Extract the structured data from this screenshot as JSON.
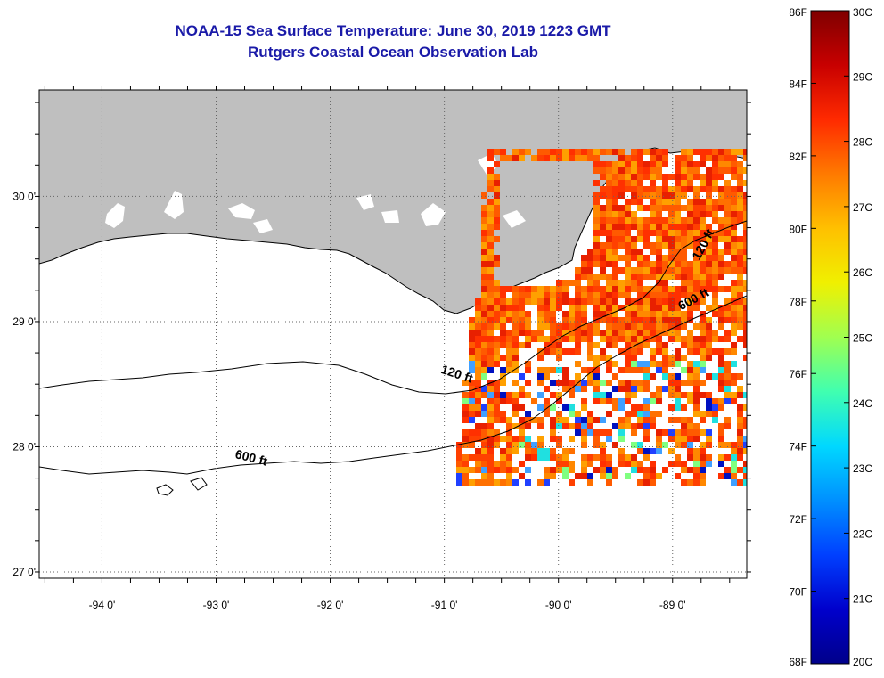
{
  "title": "NOAA-15 Sea Surface Temperature:  June 30, 2019 1223 GMT",
  "subtitle": "Rutgers Coastal Ocean Observation Lab",
  "map": {
    "lon_range": [
      -94.55,
      -88.35
    ],
    "lat_range": [
      26.95,
      30.85
    ],
    "lon_ticks": [
      {
        "value": -94,
        "label": "-94 0'"
      },
      {
        "value": -93,
        "label": "-93 0'"
      },
      {
        "value": -92,
        "label": "-92 0'"
      },
      {
        "value": -91,
        "label": "-91 0'"
      },
      {
        "value": -90,
        "label": "-90 0'"
      },
      {
        "value": -89,
        "label": "-89 0'"
      }
    ],
    "lat_ticks": [
      {
        "value": 30,
        "label": "30 0'"
      },
      {
        "value": 29,
        "label": "29 0'"
      },
      {
        "value": 28,
        "label": "28 0'"
      },
      {
        "value": 27,
        "label": "27 0'"
      }
    ],
    "contour_labels": [
      {
        "text": "120 ft",
        "lon": -90.9,
        "lat": 28.55,
        "angle": 18
      },
      {
        "text": "600 ft",
        "lon": -92.7,
        "lat": 27.88,
        "angle": 14
      },
      {
        "text": "120 ft",
        "lon": -88.7,
        "lat": 29.6,
        "angle": -62
      },
      {
        "text": "600 ft",
        "lon": -88.8,
        "lat": 29.15,
        "angle": -28
      }
    ],
    "land_color": "#bfbfbf"
  },
  "colorbar": {
    "f_labels": [
      "86F",
      "84F",
      "82F",
      "80F",
      "78F",
      "76F",
      "74F",
      "72F",
      "70F",
      "68F"
    ],
    "c_labels": [
      "30C",
      "29C",
      "28C",
      "27C",
      "26C",
      "25C",
      "24C",
      "23C",
      "22C",
      "21C",
      "20C"
    ],
    "gradient": [
      "#7f0000",
      "#c80000",
      "#ff2a00",
      "#ff7a00",
      "#ffc000",
      "#f0f000",
      "#a0ff50",
      "#40ffb0",
      "#00d8ff",
      "#0090ff",
      "#0040ff",
      "#0000cc",
      "#00008a"
    ]
  }
}
